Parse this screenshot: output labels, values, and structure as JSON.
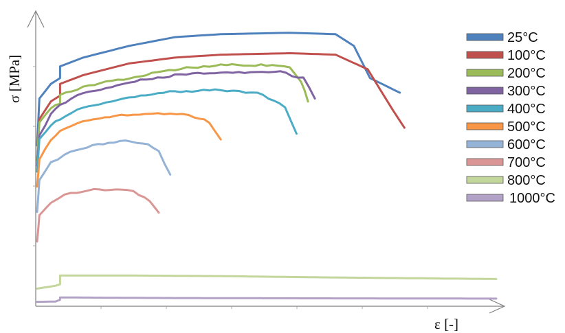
{
  "chart_data": {
    "type": "line",
    "title": "",
    "xlabel": "ε [-]",
    "ylabel": "σ [MPa]",
    "xlim": [
      0,
      1
    ],
    "ylim": [
      0,
      1
    ],
    "x_tick_labels_visible": false,
    "y_tick_labels_visible": false,
    "grid": false,
    "legend_position": "right",
    "series": [
      {
        "name": "25°C",
        "color": "#4f81bd",
        "points": [
          [
            0,
            0.55
          ],
          [
            0.005,
            0.71
          ],
          [
            0.03,
            0.76
          ],
          [
            0.05,
            0.78
          ],
          [
            0.05,
            0.82
          ],
          [
            0.1,
            0.85
          ],
          [
            0.2,
            0.89
          ],
          [
            0.3,
            0.92
          ],
          [
            0.4,
            0.93
          ],
          [
            0.55,
            0.935
          ],
          [
            0.65,
            0.93
          ],
          [
            0.69,
            0.89
          ],
          [
            0.725,
            0.78
          ],
          [
            0.79,
            0.73
          ]
        ]
      },
      {
        "name": "100°C",
        "color": "#c0504d",
        "points": [
          [
            0,
            0.5
          ],
          [
            0.005,
            0.64
          ],
          [
            0.03,
            0.7
          ],
          [
            0.05,
            0.72
          ],
          [
            0.05,
            0.76
          ],
          [
            0.1,
            0.79
          ],
          [
            0.2,
            0.83
          ],
          [
            0.3,
            0.85
          ],
          [
            0.4,
            0.86
          ],
          [
            0.55,
            0.865
          ],
          [
            0.65,
            0.86
          ],
          [
            0.72,
            0.81
          ],
          [
            0.775,
            0.67
          ],
          [
            0.8,
            0.61
          ]
        ]
      },
      {
        "name": "200°C",
        "color": "#9bbb59",
        "points": [
          [
            0,
            0.5
          ],
          [
            0.005,
            0.63
          ],
          [
            0.03,
            0.68
          ],
          [
            0.05,
            0.69
          ],
          [
            0.05,
            0.72
          ],
          [
            0.1,
            0.75
          ],
          [
            0.2,
            0.78
          ],
          [
            0.3,
            0.81
          ],
          [
            0.4,
            0.825
          ],
          [
            0.5,
            0.825
          ],
          [
            0.55,
            0.82
          ],
          [
            0.575,
            0.77
          ],
          [
            0.59,
            0.7
          ]
        ]
      },
      {
        "name": "300°C",
        "color": "#8064a2",
        "points": [
          [
            0,
            0.48
          ],
          [
            0.005,
            0.58
          ],
          [
            0.03,
            0.66
          ],
          [
            0.05,
            0.69
          ],
          [
            0.1,
            0.73
          ],
          [
            0.2,
            0.765
          ],
          [
            0.3,
            0.79
          ],
          [
            0.4,
            0.8
          ],
          [
            0.53,
            0.8
          ],
          [
            0.58,
            0.78
          ],
          [
            0.605,
            0.71
          ]
        ]
      },
      {
        "name": "400°C",
        "color": "#4bacc6",
        "points": [
          [
            0,
            0.46
          ],
          [
            0.005,
            0.57
          ],
          [
            0.03,
            0.62
          ],
          [
            0.05,
            0.64
          ],
          [
            0.1,
            0.68
          ],
          [
            0.2,
            0.715
          ],
          [
            0.3,
            0.735
          ],
          [
            0.4,
            0.74
          ],
          [
            0.48,
            0.73
          ],
          [
            0.54,
            0.68
          ],
          [
            0.565,
            0.59
          ]
        ]
      },
      {
        "name": "500°C",
        "color": "#f79646",
        "points": [
          [
            0,
            0.41
          ],
          [
            0.005,
            0.5
          ],
          [
            0.03,
            0.57
          ],
          [
            0.05,
            0.6
          ],
          [
            0.1,
            0.63
          ],
          [
            0.17,
            0.65
          ],
          [
            0.25,
            0.66
          ],
          [
            0.33,
            0.655
          ],
          [
            0.375,
            0.63
          ],
          [
            0.4,
            0.57
          ]
        ]
      },
      {
        "name": "600°C",
        "color": "#95b3d7",
        "points": [
          [
            0,
            0.32
          ],
          [
            0.005,
            0.43
          ],
          [
            0.03,
            0.49
          ],
          [
            0.06,
            0.52
          ],
          [
            0.12,
            0.55
          ],
          [
            0.18,
            0.565
          ],
          [
            0.23,
            0.56
          ],
          [
            0.265,
            0.53
          ],
          [
            0.29,
            0.45
          ]
        ]
      },
      {
        "name": "700°C",
        "color": "#d99694",
        "points": [
          [
            0,
            0.22
          ],
          [
            0.005,
            0.31
          ],
          [
            0.03,
            0.35
          ],
          [
            0.06,
            0.38
          ],
          [
            0.1,
            0.395
          ],
          [
            0.16,
            0.4
          ],
          [
            0.21,
            0.395
          ],
          [
            0.245,
            0.36
          ],
          [
            0.265,
            0.32
          ]
        ]
      },
      {
        "name": "800°C",
        "color": "#c3d69b",
        "points": [
          [
            0,
            0.06
          ],
          [
            0.04,
            0.07
          ],
          [
            0.05,
            0.075
          ],
          [
            0.05,
            0.105
          ],
          [
            0.2,
            0.105
          ],
          [
            0.4,
            0.103
          ],
          [
            0.6,
            0.099
          ],
          [
            0.8,
            0.096
          ],
          [
            1.0,
            0.093
          ]
        ]
      },
      {
        "name": "1000°C",
        "color": "#b3a2c7",
        "points": [
          [
            0,
            0.015
          ],
          [
            0.04,
            0.016
          ],
          [
            0.05,
            0.022
          ],
          [
            0.05,
            0.03
          ],
          [
            0.3,
            0.028
          ],
          [
            0.6,
            0.027
          ],
          [
            1.0,
            0.026
          ]
        ]
      }
    ]
  }
}
